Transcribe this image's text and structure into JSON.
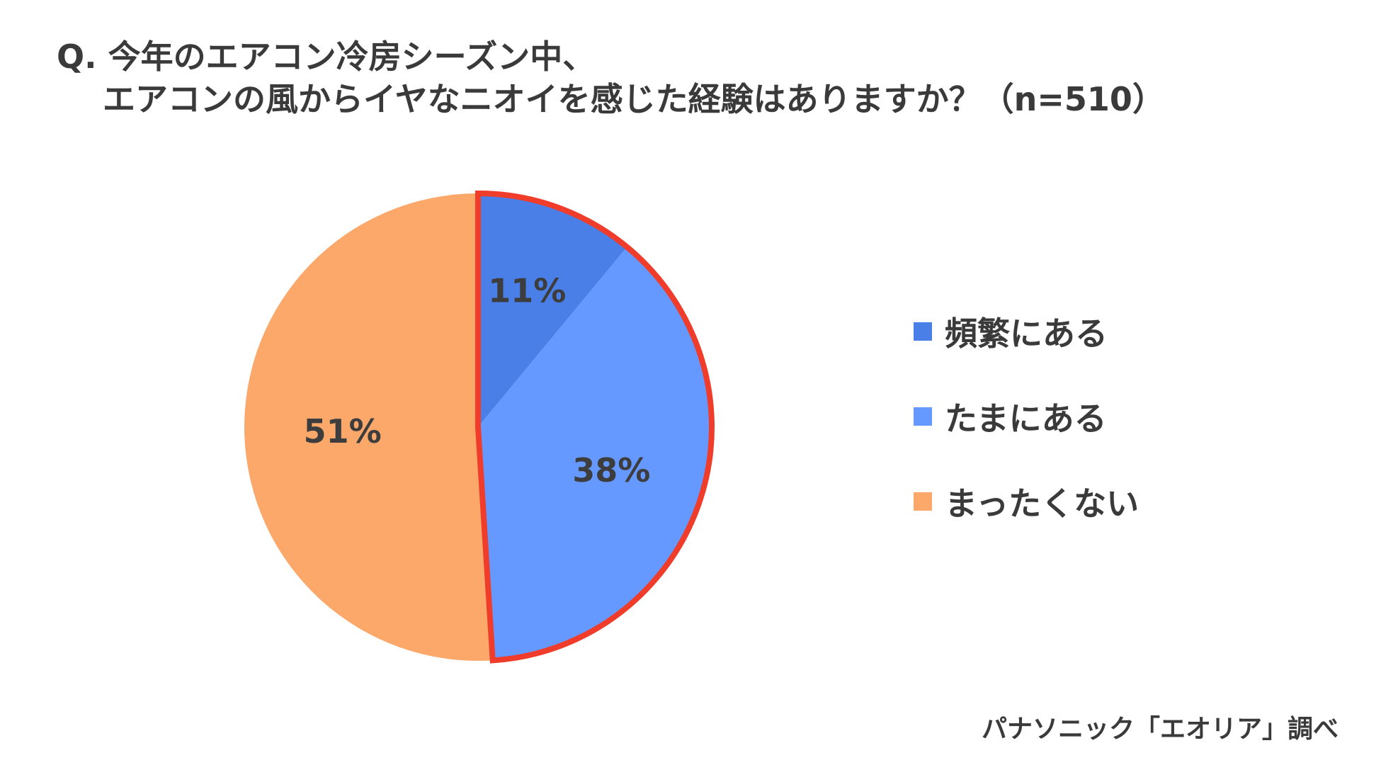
{
  "title": {
    "line1": "Q. 今年のエアコン冷房シーズン中、",
    "line2": "エアコンの風からイヤなニオイを感じた経験はありますか？（n=510）"
  },
  "chart_data": {
    "type": "pie",
    "categories": [
      "頻繁にある",
      "たまにある",
      "まったくない"
    ],
    "values": [
      11,
      38,
      51
    ],
    "labels": [
      "11%",
      "38%",
      "51%"
    ],
    "colors": [
      "#4a7fe8",
      "#6699ff",
      "#fca86b"
    ],
    "highlight_color": "#f03c2a",
    "legend_position": "right"
  },
  "source": "パナソニック「エオリア」調べ"
}
